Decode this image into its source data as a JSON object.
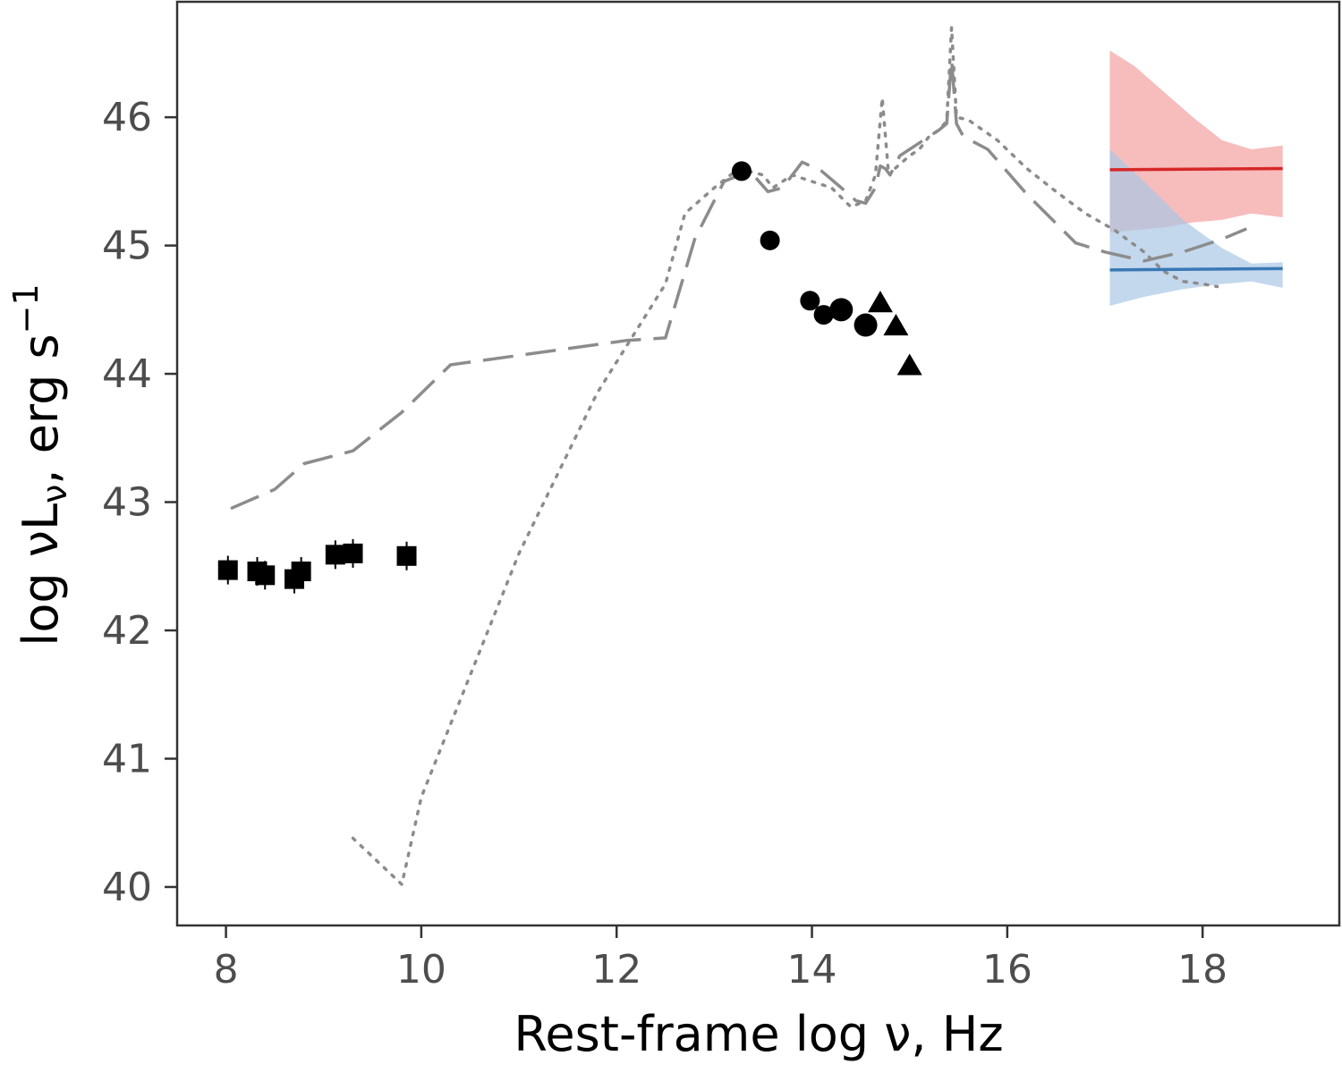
{
  "chart_data": {
    "type": "scatter",
    "title": "",
    "xlabel": {
      "main": "Rest-frame log ν, Hz"
    },
    "ylabel": {
      "prefix": "log νL",
      "sub": "ν",
      "mid": ", erg s",
      "sup": "−1"
    },
    "xlim": [
      7.5,
      19.4
    ],
    "ylim": [
      39.7,
      46.9
    ],
    "xticks": [
      8,
      10,
      12,
      14,
      16,
      18
    ],
    "yticks": [
      40,
      41,
      42,
      43,
      44,
      45,
      46
    ],
    "grid": false,
    "legend": "none",
    "colors": {
      "axis": "#333333",
      "tick_text": "#4d4d4d",
      "markers": "#000000",
      "template": "#8c8c8c",
      "red_line": "#d62728",
      "red_band": "#f4a6a6",
      "blue_line": "#3a78b5",
      "blue_band": "#a9c8e6"
    },
    "series": [
      {
        "marker": "square",
        "points": [
          [
            8.02,
            42.47
          ],
          [
            8.32,
            42.46
          ],
          [
            8.4,
            42.43
          ],
          [
            8.7,
            42.4
          ],
          [
            8.77,
            42.46
          ],
          [
            9.12,
            42.59
          ],
          [
            9.3,
            42.6
          ],
          [
            9.85,
            42.58
          ]
        ]
      },
      {
        "marker": "circle",
        "points": [
          [
            13.28,
            45.58
          ],
          [
            13.57,
            45.04
          ],
          [
            13.98,
            44.57
          ],
          [
            14.12,
            44.46
          ],
          [
            14.3,
            44.5
          ],
          [
            14.55,
            44.38
          ]
        ]
      },
      {
        "marker": "triangle",
        "points": [
          [
            14.7,
            44.55
          ],
          [
            14.86,
            44.37
          ],
          [
            15.0,
            44.06
          ]
        ]
      },
      {
        "line": "dashed",
        "points": [
          [
            8.05,
            42.95
          ],
          [
            8.5,
            43.1
          ],
          [
            8.8,
            43.3
          ],
          [
            9.3,
            43.4
          ],
          [
            9.8,
            43.7
          ],
          [
            10.3,
            44.07
          ],
          [
            12.1,
            44.26
          ],
          [
            12.5,
            44.28
          ],
          [
            12.8,
            45.05
          ],
          [
            13.1,
            45.5
          ],
          [
            13.3,
            45.56
          ],
          [
            13.4,
            45.55
          ],
          [
            13.55,
            45.42
          ],
          [
            13.7,
            45.45
          ],
          [
            13.9,
            45.65
          ],
          [
            14.1,
            45.58
          ],
          [
            14.3,
            45.45
          ],
          [
            14.45,
            45.35
          ],
          [
            14.55,
            45.33
          ],
          [
            14.65,
            45.45
          ],
          [
            14.7,
            45.62
          ],
          [
            14.75,
            45.6
          ],
          [
            14.8,
            45.55
          ],
          [
            14.9,
            45.7
          ],
          [
            15.0,
            45.75
          ],
          [
            15.1,
            45.8
          ],
          [
            15.2,
            45.85
          ],
          [
            15.3,
            45.9
          ],
          [
            15.38,
            45.95
          ],
          [
            15.43,
            46.45
          ],
          [
            15.48,
            45.95
          ],
          [
            15.55,
            45.85
          ],
          [
            15.8,
            45.75
          ],
          [
            16.2,
            45.4
          ],
          [
            16.7,
            45.02
          ],
          [
            17.0,
            44.95
          ],
          [
            17.4,
            44.88
          ],
          [
            17.8,
            44.95
          ],
          [
            18.2,
            45.05
          ],
          [
            18.45,
            45.13
          ]
        ]
      },
      {
        "line": "dotted",
        "points": [
          [
            9.3,
            40.38
          ],
          [
            9.8,
            40.02
          ],
          [
            10.0,
            40.7
          ],
          [
            11.0,
            42.6
          ],
          [
            11.8,
            43.85
          ],
          [
            12.5,
            44.7
          ],
          [
            12.7,
            45.25
          ],
          [
            13.0,
            45.45
          ],
          [
            13.25,
            45.6
          ],
          [
            13.5,
            45.55
          ],
          [
            13.6,
            45.45
          ],
          [
            13.8,
            45.55
          ],
          [
            14.0,
            45.5
          ],
          [
            14.2,
            45.45
          ],
          [
            14.4,
            45.3
          ],
          [
            14.55,
            45.35
          ],
          [
            14.65,
            45.55
          ],
          [
            14.72,
            46.15
          ],
          [
            14.78,
            45.6
          ],
          [
            14.85,
            45.6
          ],
          [
            15.0,
            45.7
          ],
          [
            15.1,
            45.75
          ],
          [
            15.2,
            45.85
          ],
          [
            15.3,
            45.9
          ],
          [
            15.38,
            45.97
          ],
          [
            15.43,
            46.7
          ],
          [
            15.48,
            46.0
          ],
          [
            15.6,
            45.98
          ],
          [
            15.9,
            45.82
          ],
          [
            16.2,
            45.6
          ],
          [
            16.5,
            45.42
          ],
          [
            16.8,
            45.25
          ],
          [
            17.1,
            45.12
          ],
          [
            17.4,
            44.95
          ],
          [
            17.6,
            44.8
          ],
          [
            17.8,
            44.72
          ],
          [
            18.0,
            44.7
          ],
          [
            18.15,
            44.68
          ]
        ]
      },
      {
        "line": "solid",
        "color": "red",
        "band": {
          "x": [
            17.05,
            17.3,
            17.6,
            17.9,
            18.2,
            18.5,
            18.82
          ],
          "upper": [
            46.52,
            46.4,
            46.2,
            46.0,
            45.82,
            45.75,
            45.78
          ],
          "lower": [
            45.1,
            45.12,
            45.14,
            45.18,
            45.2,
            45.25,
            45.22
          ]
        },
        "points": [
          [
            17.05,
            45.59
          ],
          [
            18.82,
            45.6
          ]
        ]
      },
      {
        "line": "solid",
        "color": "blue",
        "band": {
          "x": [
            17.05,
            17.4,
            17.8,
            18.2,
            18.5,
            18.82
          ],
          "upper": [
            45.75,
            45.5,
            45.2,
            44.98,
            44.86,
            44.87
          ],
          "lower": [
            44.53,
            44.6,
            44.66,
            44.7,
            44.72,
            44.67
          ]
        },
        "points": [
          [
            17.05,
            44.81
          ],
          [
            18.82,
            44.82
          ]
        ]
      }
    ]
  }
}
